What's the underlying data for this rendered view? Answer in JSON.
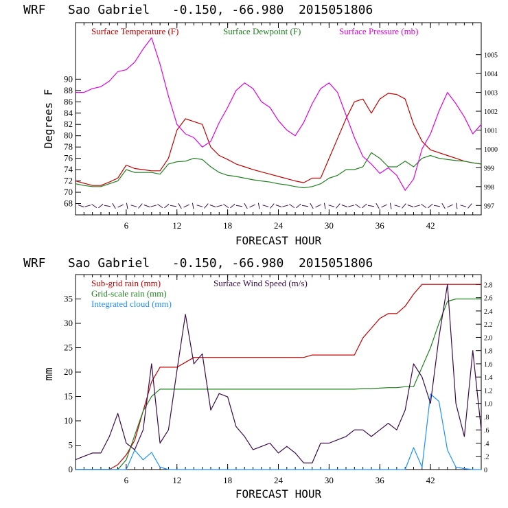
{
  "chart_data": [
    {
      "type": "line",
      "title": "WRF   Sao Gabriel   -0.150, -66.980  2015051806",
      "xlabel": "FORECAST HOUR",
      "ylabel": "Degrees F",
      "xlim": [
        0,
        48
      ],
      "ylim": [
        66,
        100
      ],
      "y2lim": [
        996.5,
        1006.7
      ],
      "x_ticks": [
        6,
        12,
        18,
        24,
        30,
        36,
        42
      ],
      "y_ticks": [
        68,
        70,
        72,
        74,
        76,
        78,
        80,
        82,
        84,
        86,
        88,
        90
      ],
      "y2_ticks": [
        997,
        998,
        999,
        1000,
        1001,
        1002,
        1003,
        1004,
        1005
      ],
      "legend": [
        "Surface Temperature (F)",
        "Surface Dewpoint (F)",
        "Surface Pressure (mb)"
      ],
      "x": [
        0,
        1,
        2,
        3,
        4,
        5,
        6,
        7,
        8,
        9,
        10,
        11,
        12,
        13,
        14,
        15,
        16,
        17,
        18,
        19,
        20,
        21,
        22,
        23,
        24,
        25,
        26,
        27,
        28,
        29,
        30,
        31,
        32,
        33,
        34,
        35,
        36,
        37,
        38,
        39,
        40,
        41,
        42,
        43,
        44,
        45,
        46,
        47,
        48
      ],
      "series": [
        {
          "name": "Surface Temperature (F)",
          "color": "#c00000",
          "values": [
            72.0,
            71.6,
            71.2,
            71.2,
            71.8,
            72.5,
            74.8,
            74.2,
            74.0,
            73.8,
            73.8,
            76.0,
            81.0,
            83.0,
            82.5,
            82.0,
            78.0,
            76.5,
            75.8,
            75.0,
            74.5,
            74.0,
            73.6,
            73.2,
            72.8,
            72.4,
            72.0,
            71.7,
            72.5,
            72.5,
            76.0,
            79.5,
            83.0,
            86.0,
            86.5,
            84.0,
            86.5,
            87.5,
            87.3,
            86.5,
            82.0,
            79.0,
            77.5,
            77.0,
            76.5,
            76.0,
            75.5,
            75.2,
            75.0
          ]
        },
        {
          "name": "Surface Dewpoint (F)",
          "color": "#208020",
          "values": [
            71.5,
            71.2,
            71.0,
            71.0,
            71.5,
            72.0,
            74.0,
            73.5,
            73.5,
            73.5,
            73.2,
            75.0,
            75.4,
            75.5,
            76.0,
            75.8,
            74.5,
            73.5,
            73.0,
            72.8,
            72.5,
            72.2,
            72.0,
            71.8,
            71.5,
            71.3,
            71.0,
            70.8,
            71.0,
            71.5,
            72.5,
            73.0,
            74.0,
            74.0,
            74.5,
            77.0,
            76.0,
            74.5,
            74.5,
            75.5,
            74.5,
            76.0,
            76.5,
            76.0,
            75.8,
            75.6,
            75.5,
            75.2,
            75.0
          ]
        },
        {
          "name": "Surface Pressure (mb)",
          "color": "#e000e0",
          "values": [
            1003.0,
            1003.0,
            1003.2,
            1003.3,
            1003.6,
            1004.1,
            1004.2,
            1004.6,
            1005.3,
            1005.9,
            1004.5,
            1002.8,
            1001.3,
            1000.8,
            1000.6,
            1000.1,
            1000.4,
            1001.4,
            1002.2,
            1003.1,
            1003.5,
            1003.2,
            1002.5,
            1002.2,
            1001.5,
            1001.0,
            1000.7,
            1001.4,
            1002.4,
            1003.2,
            1003.5,
            1003.0,
            1001.8,
            1000.6,
            999.6,
            999.2,
            998.7,
            999.0,
            998.6,
            997.8,
            998.4,
            1000.0,
            1000.8,
            1002.0,
            1003.0,
            1002.4,
            1001.7,
            1000.8,
            1001.3
          ]
        }
      ]
    },
    {
      "type": "line",
      "title": "WRF   Sao Gabriel   -0.150, -66.980  2015051806",
      "xlabel": "FORECAST HOUR",
      "ylabel": "mm",
      "xlim": [
        0,
        48
      ],
      "ylim": [
        0,
        40
      ],
      "y2lim": [
        0,
        2.95
      ],
      "x_ticks": [
        6,
        12,
        18,
        24,
        30,
        36,
        42
      ],
      "y_ticks": [
        0,
        5,
        10,
        15,
        20,
        25,
        30,
        35
      ],
      "y2_ticks": [
        "0",
        ".2",
        ".4",
        ".6",
        ".8",
        "1.0",
        "1.2",
        "1.4",
        "1.6",
        "1.8",
        "2.0",
        "2.2",
        "2.4",
        "2.6",
        "2.8"
      ],
      "legend": [
        "Sub-grid rain (mm)",
        "Surface Wind Speed (m/s)",
        "Grid-scale rain (mm)",
        "Integrated cloud (mm)"
      ],
      "x": [
        0,
        1,
        2,
        3,
        4,
        5,
        6,
        7,
        8,
        9,
        10,
        11,
        12,
        13,
        14,
        15,
        16,
        17,
        18,
        19,
        20,
        21,
        22,
        23,
        24,
        25,
        26,
        27,
        28,
        29,
        30,
        31,
        32,
        33,
        34,
        35,
        36,
        37,
        38,
        39,
        40,
        41,
        42,
        43,
        44,
        45,
        46,
        47,
        48
      ],
      "series": [
        {
          "name": "Sub-grid rain (mm)",
          "color": "#c00000",
          "values": [
            0,
            0,
            0,
            0,
            0,
            1,
            3,
            6,
            12,
            18,
            21,
            21,
            21,
            22,
            23,
            23,
            23,
            23,
            23,
            23,
            23,
            23,
            23,
            23,
            23,
            23,
            23,
            23,
            23.5,
            23.5,
            23.5,
            23.5,
            23.5,
            23.5,
            27,
            29,
            31,
            32,
            32,
            33.5,
            36,
            38,
            38,
            38,
            38,
            38,
            38,
            38,
            38
          ]
        },
        {
          "name": "Grid-scale rain (mm)",
          "color": "#208020",
          "values": [
            0,
            0,
            0,
            0,
            0,
            0,
            2,
            7,
            12,
            15,
            16.5,
            16.5,
            16.5,
            16.5,
            16.5,
            16.5,
            16.5,
            16.5,
            16.5,
            16.5,
            16.5,
            16.5,
            16.5,
            16.5,
            16.5,
            16.5,
            16.5,
            16.5,
            16.5,
            16.5,
            16.5,
            16.5,
            16.5,
            16.5,
            16.6,
            16.6,
            16.7,
            16.8,
            16.8,
            17,
            17,
            21,
            25,
            30,
            34.5,
            35,
            35,
            35,
            35
          ]
        },
        {
          "name": "Integrated cloud (mm)",
          "color": "#1e90ff",
          "values": [
            0,
            0,
            0,
            0,
            0,
            0,
            0,
            4,
            2,
            3.5,
            0.5,
            0,
            0,
            0,
            0,
            0,
            0,
            0,
            0,
            0,
            0,
            0,
            0,
            0,
            0,
            0,
            0,
            0,
            0,
            0,
            0,
            0,
            0,
            0,
            0,
            0,
            0,
            0,
            0,
            0,
            4.5,
            0.5,
            15.5,
            14,
            4,
            0.5,
            0.2,
            0,
            0
          ]
        },
        {
          "name": "Surface Wind Speed (m/s)",
          "color": "#3a0a48",
          "values": [
            0.15,
            0.2,
            0.25,
            0.25,
            0.5,
            0.85,
            0.4,
            0.3,
            0.6,
            1.6,
            0.4,
            0.6,
            1.5,
            2.35,
            1.6,
            1.75,
            0.9,
            1.15,
            1.1,
            0.65,
            0.5,
            0.3,
            0.35,
            0.4,
            0.25,
            0.35,
            0.25,
            0.1,
            0.1,
            0.4,
            0.4,
            0.45,
            0.5,
            0.6,
            0.6,
            0.5,
            0.6,
            0.7,
            0.6,
            0.9,
            1.6,
            1.4,
            1.0,
            2.0,
            2.8,
            1.0,
            0.5,
            1.8,
            0.6
          ]
        }
      ]
    }
  ]
}
